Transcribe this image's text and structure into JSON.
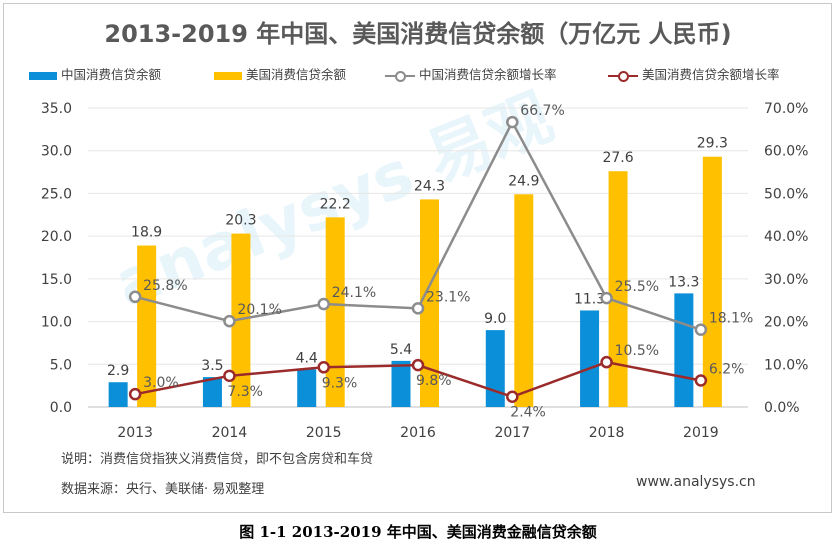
{
  "title": "2013-2019 年中国、美国消费信贷余额（万亿元 人民币)",
  "legend": {
    "cn_balance": "中国消费信贷余额",
    "us_balance": "美国消费信贷余额",
    "cn_growth": "中国消费信贷余额增长率",
    "us_growth": "美国消费信贷余额增长率"
  },
  "colors": {
    "cn_bar": "#0a8fd8",
    "us_bar": "#ffc000",
    "cn_line": "#8c8c8c",
    "us_line": "#9b2b2b"
  },
  "chart_data": {
    "type": "bar",
    "categories": [
      "2013",
      "2014",
      "2015",
      "2016",
      "2017",
      "2018",
      "2019"
    ],
    "series": [
      {
        "name": "中国消费信贷余额",
        "axis": "left",
        "kind": "bar",
        "values": [
          2.9,
          3.5,
          4.4,
          5.4,
          9.0,
          11.3,
          13.3
        ]
      },
      {
        "name": "美国消费信贷余额",
        "axis": "left",
        "kind": "bar",
        "values": [
          18.9,
          20.3,
          22.2,
          24.3,
          24.9,
          27.6,
          29.3
        ]
      },
      {
        "name": "中国消费信贷余额增长率",
        "axis": "right",
        "kind": "line",
        "values": [
          25.8,
          20.1,
          24.1,
          23.1,
          66.7,
          25.5,
          18.1
        ]
      },
      {
        "name": "美国消费信贷余额增长率",
        "axis": "right",
        "kind": "line",
        "values": [
          3.0,
          7.3,
          9.3,
          9.8,
          2.4,
          10.5,
          6.2
        ]
      }
    ],
    "ylim_left": [
      0,
      35
    ],
    "left_ticks": [
      "0.0",
      "5.0",
      "10.0",
      "15.0",
      "20.0",
      "25.0",
      "30.0",
      "35.0"
    ],
    "ylim_right": [
      0,
      70
    ],
    "right_ticks": [
      "0.0%",
      "10.0%",
      "20.0%",
      "30.0%",
      "40.0%",
      "50.0%",
      "60.0%",
      "70.0%"
    ],
    "bar_labels_cn": [
      "2.9",
      "3.5",
      "4.4",
      "5.4",
      "9.0",
      "11.3",
      "13.3"
    ],
    "bar_labels_us": [
      "18.9",
      "20.3",
      "22.2",
      "24.3",
      "24.9",
      "27.6",
      "29.3"
    ],
    "line_labels_cn": [
      "25.8%",
      "20.1%",
      "24.1%",
      "23.1%",
      "66.7%",
      "25.5%",
      "18.1%"
    ],
    "line_labels_us": [
      "3.0%",
      "7.3%",
      "9.3%",
      "9.8%",
      "2.4%",
      "10.5%",
      "6.2%"
    ]
  },
  "notes": {
    "description": "说明：消费信贷指狭义消费信贷，即不包含房贷和车贷",
    "source": "数据来源：央行、美联储· 易观整理",
    "website": "www.analysys.cn",
    "watermark": "analysys 易观"
  },
  "caption": "图 1-1 2013-2019 年中国、美国消费金融信贷余额"
}
